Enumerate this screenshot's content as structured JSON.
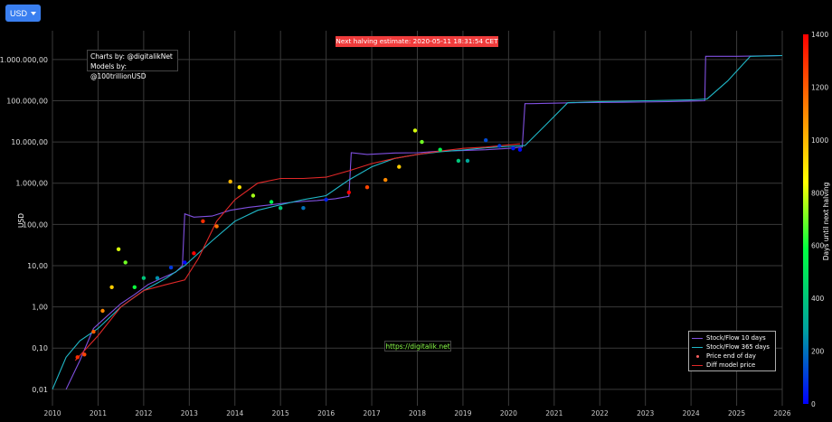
{
  "currency_selector": {
    "label": "USD"
  },
  "credits": {
    "line1": "Charts by: @digitalikNet",
    "line2": "Models by: @100trillionUSD"
  },
  "halving_banner": "Next halving estimate: 2020-05-11 18:31:54 CET",
  "watermark": "https://digitalik.net",
  "legend": {
    "sf10": "Stock/Flow 10 days",
    "sf365": "Stock/Flow 365 days",
    "price": "Price end of day",
    "diff": "Diff model price"
  },
  "colors": {
    "sf10": "#8050e0",
    "sf365": "#20b8c8",
    "diff": "#e02828",
    "price_dot": "#ff6060",
    "banner": "#f03c3c",
    "watermark": "#8cff4a"
  },
  "chart_data": {
    "type": "line",
    "title": "",
    "xlabel": "",
    "ylabel": "USD",
    "y_scale": "log",
    "ylim": [
      0.004,
      5000000
    ],
    "xlim": [
      2010,
      2026
    ],
    "x_ticks": [
      "2010",
      "2011",
      "2012",
      "2013",
      "2014",
      "2015",
      "2016",
      "2017",
      "2018",
      "2019",
      "2020",
      "2021",
      "2022",
      "2023",
      "2024",
      "2025",
      "2026"
    ],
    "y_ticks": [
      {
        "value": 0.01,
        "label": "0,01"
      },
      {
        "value": 0.1,
        "label": "0,10"
      },
      {
        "value": 1,
        "label": "1,00"
      },
      {
        "value": 10,
        "label": "10,00"
      },
      {
        "value": 100,
        "label": "100,00"
      },
      {
        "value": 1000,
        "label": "1.000,00"
      },
      {
        "value": 10000,
        "label": "10.000,00"
      },
      {
        "value": 100000,
        "label": "100.000,00"
      },
      {
        "value": 1000000,
        "label": "1.000.000,00"
      }
    ],
    "colorbar": {
      "title": "Days until next halving",
      "range": [
        0,
        1400
      ],
      "ticks": [
        0,
        200,
        400,
        600,
        800,
        1000,
        1200,
        1400
      ]
    },
    "series": [
      {
        "name": "Stock/Flow 10 days",
        "x": [
          2010.3,
          2010.6,
          2010.9,
          2011.2,
          2011.5,
          2011.8,
          2012.1,
          2012.4,
          2012.7,
          2012.85,
          2012.9,
          2013.1,
          2013.5,
          2013.9,
          2014.3,
          2014.8,
          2015.3,
          2015.8,
          2016.2,
          2016.5,
          2016.55,
          2016.9,
          2017.5,
          2018.0,
          2018.5,
          2019.0,
          2019.5,
          2020.0,
          2020.3,
          2020.36,
          2020.5,
          2021.5,
          2022.5,
          2023.5,
          2024.3,
          2024.32,
          2025.0,
          2026.0
        ],
        "y": [
          0.01,
          0.05,
          0.3,
          0.6,
          1.2,
          2.0,
          3.5,
          5,
          7,
          10,
          180,
          150,
          160,
          220,
          260,
          300,
          350,
          380,
          420,
          480,
          5500,
          5000,
          5400,
          5500,
          6000,
          6200,
          6500,
          7000,
          7500,
          85000,
          85000,
          90000,
          92000,
          95000,
          100000,
          1200000,
          1200000,
          1250000
        ]
      },
      {
        "name": "Stock/Flow 365 days",
        "x": [
          2010.0,
          2010.3,
          2010.6,
          2011.0,
          2011.5,
          2012.0,
          2012.5,
          2012.9,
          2013.5,
          2014.0,
          2014.5,
          2015.0,
          2015.5,
          2016.0,
          2016.5,
          2017.0,
          2017.5,
          2018.0,
          2018.5,
          2019.0,
          2019.5,
          2020.0,
          2020.36,
          2020.8,
          2021.3,
          2022.0,
          2023.0,
          2024.0,
          2024.35,
          2024.8,
          2025.3,
          2026.0
        ],
        "y": [
          0.01,
          0.06,
          0.15,
          0.3,
          1.0,
          2.5,
          5,
          10,
          40,
          120,
          220,
          300,
          400,
          500,
          1200,
          2500,
          4000,
          5000,
          5800,
          6400,
          7200,
          7800,
          8200,
          25000,
          90000,
          95000,
          100000,
          105000,
          110000,
          300000,
          1200000,
          1250000
        ]
      },
      {
        "name": "Diff model price",
        "x": [
          2010.5,
          2011.0,
          2011.5,
          2012.0,
          2012.5,
          2012.9,
          2013.2,
          2013.6,
          2014.0,
          2014.5,
          2015.0,
          2015.5,
          2016.0,
          2016.5,
          2017.0,
          2017.5,
          2018.0,
          2018.5,
          2019.0,
          2019.5,
          2020.0,
          2020.25
        ],
        "y": [
          0.05,
          0.2,
          1.0,
          2.5,
          3.5,
          4.5,
          15,
          120,
          400,
          1000,
          1300,
          1300,
          1400,
          2000,
          3000,
          4000,
          5000,
          6000,
          7000,
          7500,
          8500,
          9000
        ]
      },
      {
        "name": "Price end of day",
        "x": [
          2010.55,
          2010.7,
          2010.9,
          2011.1,
          2011.3,
          2011.45,
          2011.6,
          2011.8,
          2012.0,
          2012.3,
          2012.6,
          2012.9,
          2013.1,
          2013.3,
          2013.6,
          2013.9,
          2014.1,
          2014.4,
          2014.8,
          2015.0,
          2015.5,
          2016.0,
          2016.5,
          2016.9,
          2017.3,
          2017.6,
          2017.95,
          2018.1,
          2018.5,
          2018.9,
          2019.1,
          2019.5,
          2019.8,
          2020.1,
          2020.25
        ],
        "y": [
          0.06,
          0.07,
          0.25,
          0.8,
          3,
          25,
          12,
          3,
          5,
          5,
          9,
          12,
          20,
          120,
          90,
          1100,
          800,
          500,
          350,
          250,
          250,
          400,
          600,
          800,
          1200,
          2500,
          19000,
          10000,
          6500,
          3500,
          3500,
          11000,
          8000,
          7000,
          6500
        ],
        "days_until_halving": [
          1300,
          1250,
          1200,
          1100,
          950,
          800,
          700,
          600,
          400,
          250,
          100,
          10,
          1400,
          1300,
          1150,
          1000,
          900,
          750,
          550,
          400,
          200,
          60,
          1400,
          1250,
          1100,
          950,
          800,
          700,
          550,
          400,
          300,
          130,
          100,
          40,
          10
        ]
      }
    ]
  }
}
